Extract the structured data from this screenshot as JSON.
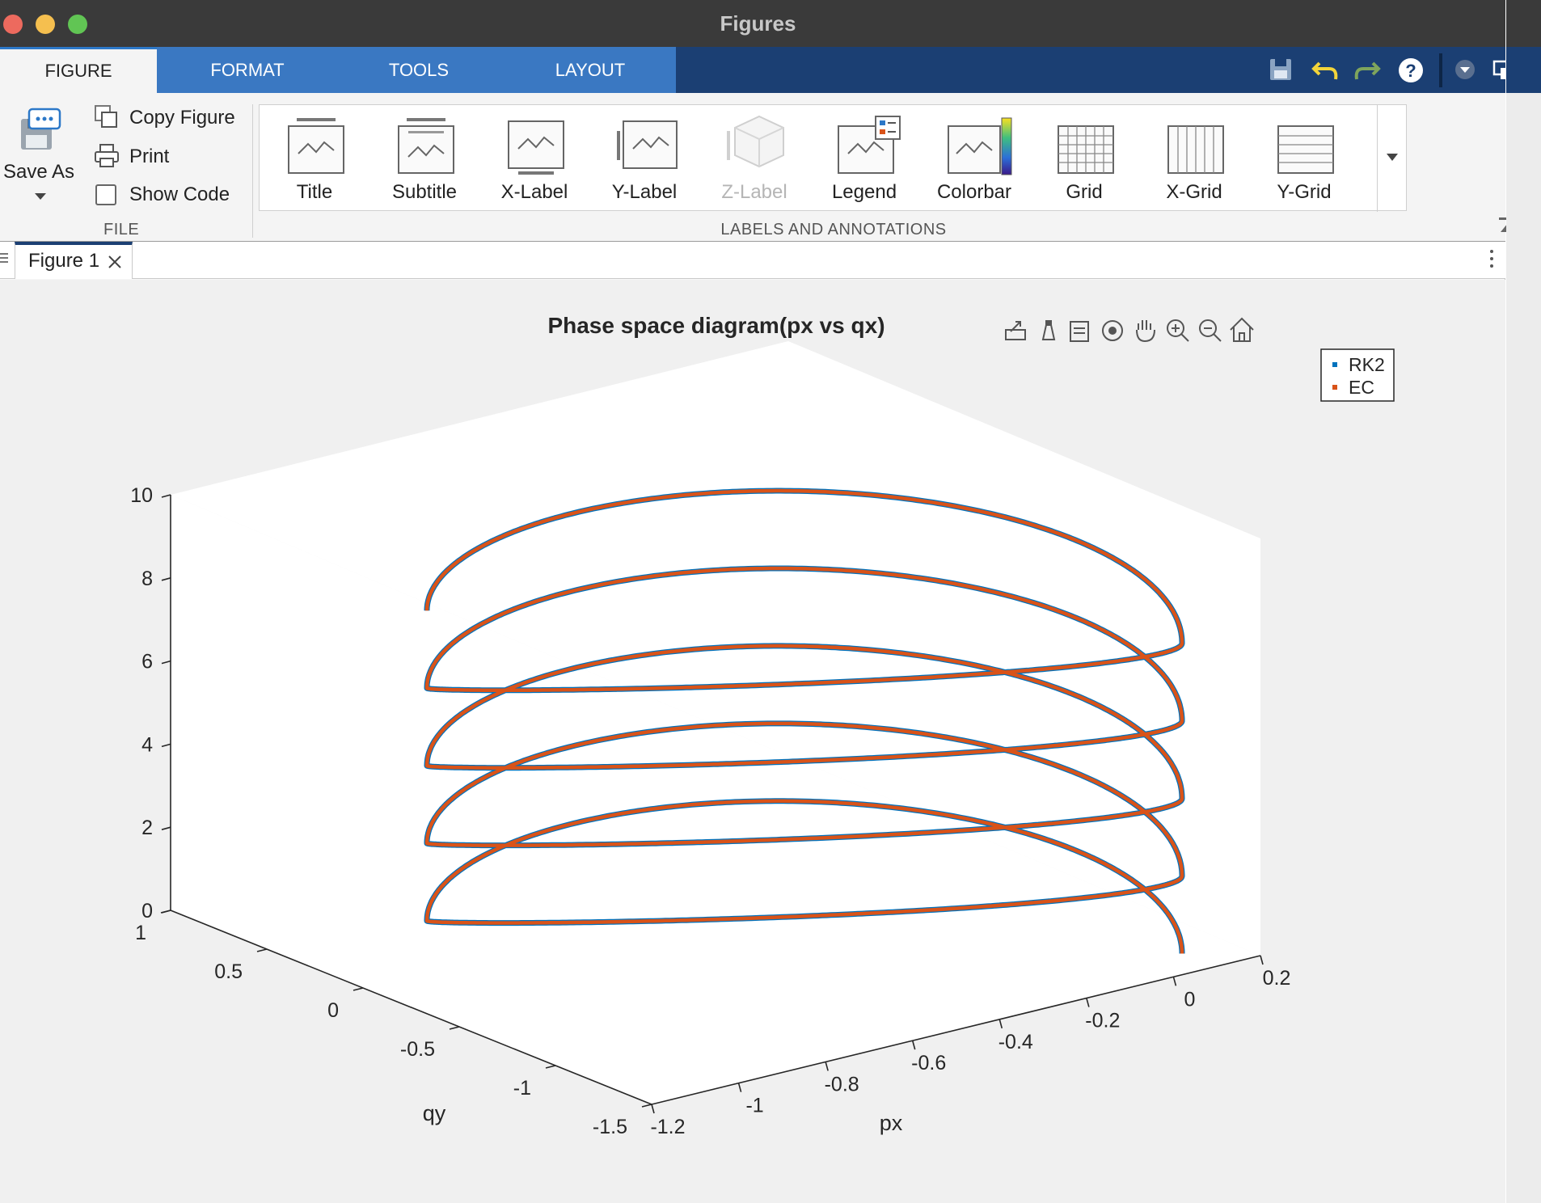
{
  "window": {
    "title": "Figures"
  },
  "ribbon_tabs": [
    "FIGURE",
    "FORMAT",
    "TOOLS",
    "LAYOUT"
  ],
  "file_section": {
    "save_as": "Save As",
    "copy_figure": "Copy Figure",
    "print": "Print",
    "show_code": "Show Code",
    "label": "FILE"
  },
  "annotations_section": {
    "label": "LABELS AND ANNOTATIONS",
    "items": [
      "Title",
      "Subtitle",
      "X-Label",
      "Y-Label",
      "Z-Label",
      "Legend",
      "Colorbar",
      "Grid",
      "X-Grid",
      "Y-Grid"
    ],
    "disabled": [
      "Z-Label"
    ]
  },
  "document_tab": {
    "label": "Figure 1"
  },
  "colors": {
    "rk2": "#0072BD",
    "ec": "#D95319",
    "ribbon_blue": "#3a78c2",
    "tabbar_navy": "#1b3f73"
  },
  "axes_toolbar_icons": [
    "export-icon",
    "data-tips-icon",
    "brush-icon",
    "rotate-icon",
    "pan-icon",
    "zoom-in-icon",
    "zoom-out-icon",
    "home-icon"
  ],
  "chart_data": {
    "type": "line3d",
    "title": "Phase space diagram(px vs qx)",
    "xlabel": "px",
    "ylabel": "qy",
    "zlabel": "",
    "xlim": [
      -1.2,
      0.2
    ],
    "ylim": [
      -1.5,
      1
    ],
    "zlim": [
      0,
      10
    ],
    "xticks": [
      "-1.2",
      "-1",
      "-0.8",
      "-0.6",
      "-0.4",
      "-0.2",
      "0",
      "0.2"
    ],
    "yticks": [
      "-1.5",
      "-1",
      "-0.5",
      "0",
      "0.5",
      "1"
    ],
    "zticks": [
      "0",
      "2",
      "4",
      "6",
      "8",
      "10"
    ],
    "legend": {
      "entries": [
        "RK2",
        "EC"
      ],
      "location": "top-right"
    },
    "grid": false,
    "series": [
      {
        "name": "RK2",
        "color": "#0072BD",
        "turns": 4.5,
        "z_start": 2.9,
        "z_end": 11.3
      },
      {
        "name": "EC",
        "color": "#D95319",
        "turns": 4.5,
        "z_start": 2.9,
        "z_end": 11.3
      }
    ]
  }
}
